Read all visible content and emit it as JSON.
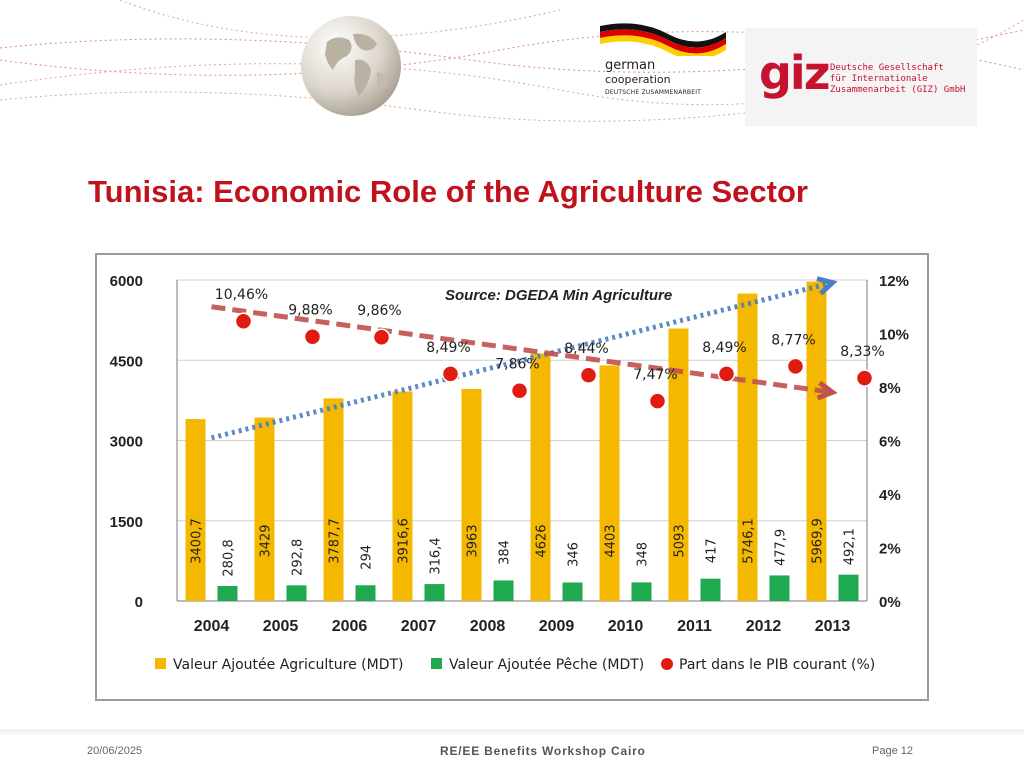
{
  "slide": {
    "title": "Tunisia: Economic Role of the Agriculture Sector"
  },
  "logos": {
    "german_cooperation": {
      "line1": "german",
      "line2": "cooperation",
      "line3": "DEUTSCHE ZUSAMMENARBEIT"
    },
    "giz": {
      "wordmark": "giz",
      "line1": "Deutsche Gesellschaft",
      "line2": "für Internationale",
      "line3": "Zusammenarbeit (GIZ) GmbH"
    }
  },
  "footer": {
    "date": "20/06/2025",
    "center": "RE/EE Benefits Workshop Cairo",
    "page": "Page 12"
  },
  "colors": {
    "title": "#c0121c",
    "agriculture_bar": "#f5b800",
    "peche_bar": "#1faa4f",
    "pib_point": "#e01b10",
    "trend_up": "#4a7fc1",
    "trend_down": "#c0504d"
  },
  "chart_data": {
    "type": "bar",
    "source_text": "Source: DGEDA Min Agriculture",
    "categories": [
      "2004",
      "2005",
      "2006",
      "2007",
      "2008",
      "2009",
      "2010",
      "2011",
      "2012",
      "2013"
    ],
    "series": [
      {
        "name": "Valeur Ajoutée Agriculture (MDT)",
        "kind": "bar",
        "axis": "left",
        "values": [
          3400.7,
          3429,
          3787.7,
          3916.6,
          3963,
          4626,
          4403,
          5093,
          5746.1,
          5969.9
        ],
        "labels": [
          "3400,7",
          "3429",
          "3787,7",
          "3916,6",
          "3963",
          "4626",
          "4403",
          "5093",
          "5746,1",
          "5969,9"
        ]
      },
      {
        "name": "Valeur Ajoutée Pêche (MDT)",
        "kind": "bar",
        "axis": "left",
        "values": [
          280.8,
          292.8,
          294,
          316.4,
          384,
          346,
          348,
          417,
          477.9,
          492.1
        ],
        "labels": [
          "280,8",
          "292,8",
          "294",
          "316,4",
          "384",
          "346",
          "348",
          "417",
          "477,9",
          "492,1"
        ]
      },
      {
        "name": "Part dans le PIB courant (%)",
        "kind": "scatter",
        "axis": "right",
        "values": [
          10.46,
          9.88,
          9.86,
          8.49,
          7.86,
          8.44,
          7.47,
          8.49,
          8.77,
          8.33
        ],
        "labels": [
          "10,46%",
          "9,88%",
          "9,86%",
          "8,49%",
          "7,86%",
          "8,44%",
          "7,47%",
          "8,49%",
          "8,77%",
          "8,33%"
        ]
      }
    ],
    "y_left": {
      "ylim": [
        0,
        6000
      ],
      "ticks": [
        "0",
        "1500",
        "3000",
        "4500",
        "6000"
      ],
      "tick_values": [
        0,
        1500,
        3000,
        4500,
        6000
      ]
    },
    "y_right": {
      "ylim": [
        0,
        12
      ],
      "ticks": [
        "0%",
        "2%",
        "4%",
        "6%",
        "8%",
        "10%",
        "12%"
      ],
      "tick_values": [
        0,
        2,
        4,
        6,
        8,
        10,
        12
      ]
    },
    "trend_lines": [
      {
        "style": "dotted-arrow",
        "color": "#4a7fc1",
        "axis": "left",
        "from": [
          "2004",
          3050
        ],
        "to": [
          "2013",
          5950
        ]
      },
      {
        "style": "dashed-arrow",
        "color": "#c0504d",
        "axis": "right",
        "from": [
          "2004",
          11.0
        ],
        "to": [
          "2013",
          7.8
        ]
      }
    ],
    "grid": true,
    "legend_position": "bottom"
  }
}
